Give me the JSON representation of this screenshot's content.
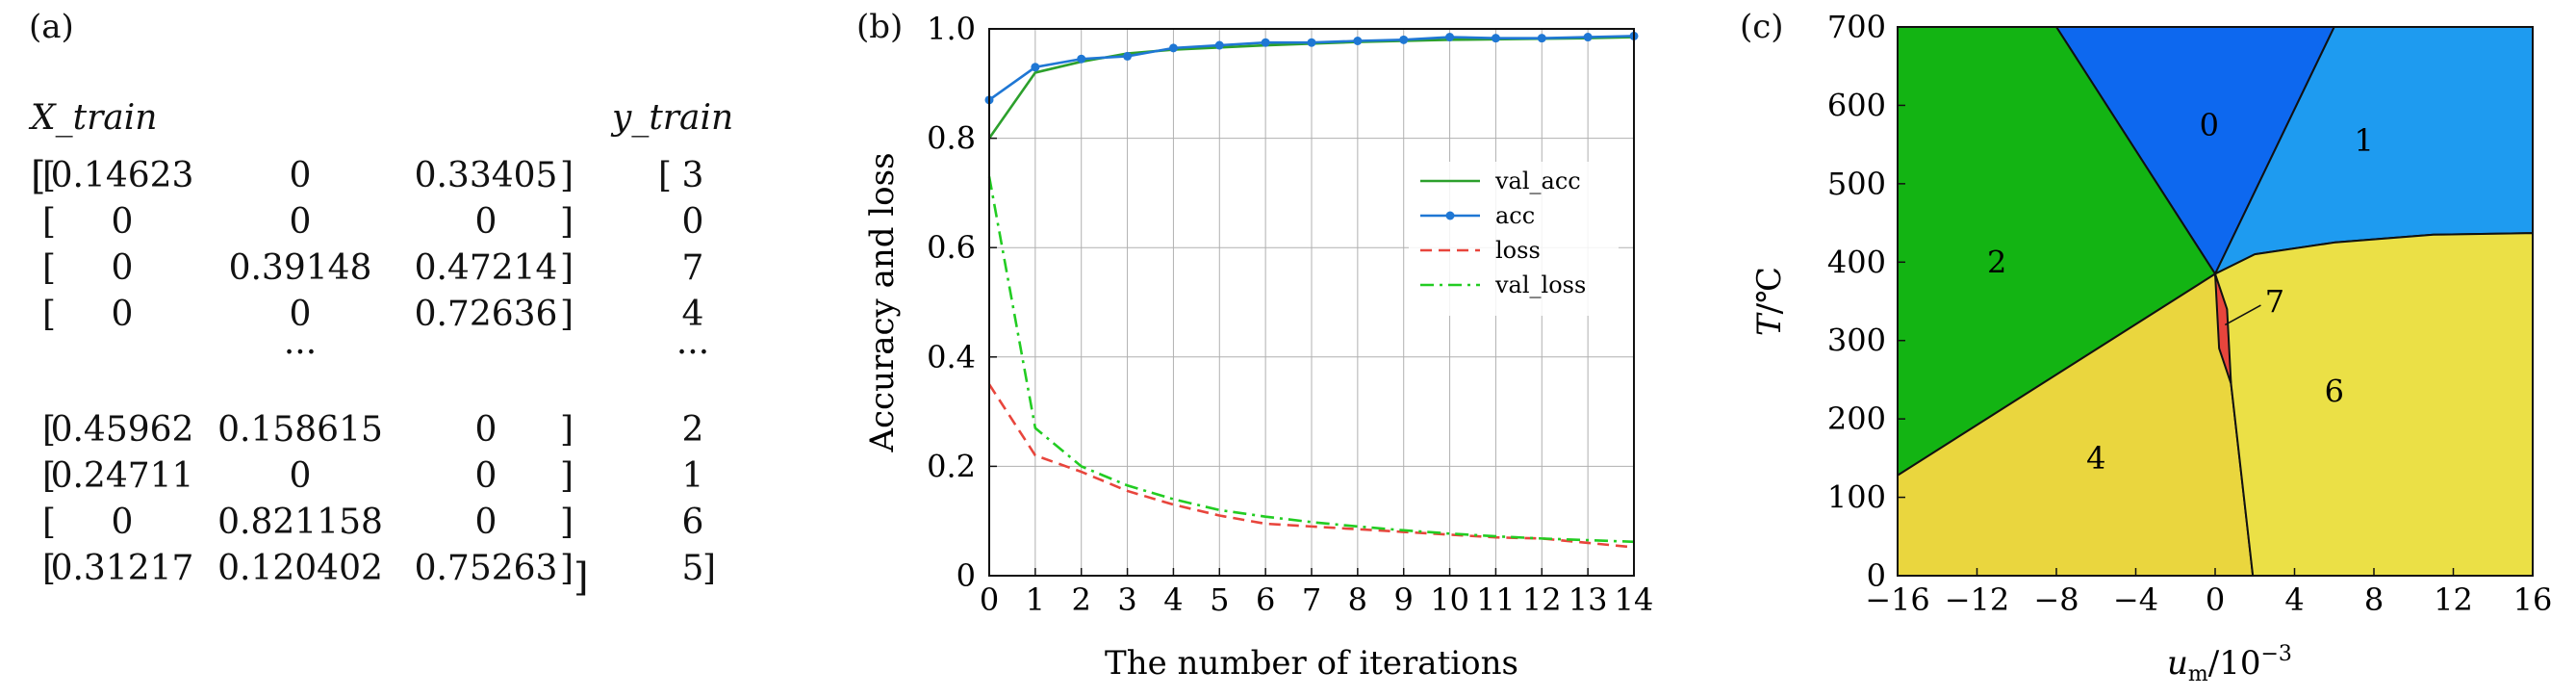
{
  "panel_a": {
    "label": "(a)",
    "x_header": "X_train",
    "y_header": "y_train",
    "open_outer": "[",
    "close_outer": "]",
    "rows": [
      {
        "c1": "0.14623",
        "c2": "0",
        "c3": "0.33405",
        "y": "3"
      },
      {
        "c1": "0",
        "c2": "0",
        "c3": "0",
        "y": "0"
      },
      {
        "c1": "0",
        "c2": "0.39148",
        "c3": "0.47214",
        "y": "7"
      },
      {
        "c1": "0",
        "c2": "0",
        "c3": "0.72636",
        "y": "4"
      },
      {
        "c1": "0.45962",
        "c2": "0.158615",
        "c3": "0",
        "y": "2"
      },
      {
        "c1": "0.24711",
        "c2": "0",
        "c3": "0",
        "y": "1"
      },
      {
        "c1": "0",
        "c2": "0.821158",
        "c3": "0",
        "y": "6"
      },
      {
        "c1": "0.31217",
        "c2": "0.120402",
        "c3": "0.75263",
        "y": "5"
      }
    ],
    "ellipsis": "···"
  },
  "panel_b": {
    "label": "(b)"
  },
  "panel_c": {
    "label": "(c)"
  },
  "chart_data": [
    {
      "type": "line",
      "title": "",
      "xlabel": "The number of iterations",
      "ylabel": "Accuracy and loss",
      "x": [
        0,
        1,
        2,
        3,
        4,
        5,
        6,
        7,
        8,
        9,
        10,
        11,
        12,
        13,
        14
      ],
      "xlim": [
        0,
        14
      ],
      "ylim": [
        0,
        1.0
      ],
      "yticks": [
        0,
        0.2,
        0.4,
        0.6,
        0.8,
        1.0
      ],
      "ytick_labels": [
        "0",
        "0.2",
        "0.4",
        "0.6",
        "0.8",
        "1.0"
      ],
      "xtick_labels": [
        "0",
        "1",
        "2",
        "3",
        "4",
        "5",
        "6",
        "7",
        "8",
        "9",
        "10",
        "11",
        "12",
        "13",
        "14"
      ],
      "grid": true,
      "legend_position": "center-right",
      "series": [
        {
          "name": "val_acc",
          "color": "#2ca02c",
          "style": "solid",
          "values": [
            0.8,
            0.92,
            0.94,
            0.955,
            0.962,
            0.966,
            0.97,
            0.973,
            0.976,
            0.978,
            0.98,
            0.981,
            0.982,
            0.983,
            0.985
          ]
        },
        {
          "name": "acc",
          "color": "#1f77d4",
          "style": "solid-marker",
          "values": [
            0.87,
            0.93,
            0.945,
            0.95,
            0.965,
            0.97,
            0.975,
            0.975,
            0.978,
            0.98,
            0.985,
            0.983,
            0.983,
            0.985,
            0.987
          ]
        },
        {
          "name": "loss",
          "color": "#e8453c",
          "style": "dashed",
          "values": [
            0.35,
            0.22,
            0.19,
            0.155,
            0.13,
            0.11,
            0.095,
            0.09,
            0.085,
            0.08,
            0.075,
            0.07,
            0.068,
            0.06,
            0.052
          ]
        },
        {
          "name": "val_loss",
          "color": "#22cc22",
          "style": "dashdot",
          "values": [
            0.73,
            0.27,
            0.2,
            0.165,
            0.14,
            0.12,
            0.108,
            0.098,
            0.09,
            0.083,
            0.077,
            0.072,
            0.068,
            0.065,
            0.062
          ]
        }
      ]
    },
    {
      "type": "phase-diagram",
      "title": "",
      "xlabel": "u_m/10^-3",
      "ylabel": "T/℃",
      "xlim": [
        -16,
        16
      ],
      "ylim": [
        0,
        700
      ],
      "xticks": [
        -16,
        -12,
        -8,
        -4,
        0,
        4,
        8,
        12,
        16
      ],
      "xtick_labels": [
        "−16",
        "−12",
        "−8",
        "−4",
        "0",
        "4",
        "8",
        "12",
        "16"
      ],
      "yticks": [
        0,
        100,
        200,
        300,
        400,
        500,
        600,
        700
      ],
      "ytick_labels": [
        "0",
        "100",
        "200",
        "300",
        "400",
        "500",
        "600",
        "700"
      ],
      "x_axis_label": {
        "main": "u",
        "sub": "m",
        "tail": "/10",
        "sup": "−3"
      },
      "y_axis_label": {
        "main": "T",
        "tail": "/℃"
      },
      "regions": [
        {
          "label": "0",
          "color": "#0d68ef",
          "label_at": [
            -0.3,
            575
          ],
          "polygon": [
            [
              -8,
              700
            ],
            [
              6,
              700
            ],
            [
              0,
              385
            ]
          ]
        },
        {
          "label": "1",
          "color": "#1e9bf0",
          "label_at": [
            7.5,
            555
          ],
          "polygon": [
            [
              6,
              700
            ],
            [
              16,
              700
            ],
            [
              16,
              437
            ],
            [
              11,
              435
            ],
            [
              6,
              425
            ],
            [
              2,
              410
            ],
            [
              0,
              385
            ]
          ]
        },
        {
          "label": "2",
          "color": "#13b413",
          "label_at": [
            -11,
            400
          ],
          "polygon": [
            [
              -16,
              700
            ],
            [
              -8,
              700
            ],
            [
              0,
              385
            ],
            [
              -16,
              128
            ]
          ]
        },
        {
          "label": "4",
          "color": "#ead63e",
          "label_at": [
            -6,
            150
          ],
          "polygon": [
            [
              -16,
              128
            ],
            [
              0,
              385
            ],
            [
              0.8,
              245
            ],
            [
              1.9,
              0
            ],
            [
              -16,
              0
            ]
          ]
        },
        {
          "label": "6",
          "color": "#ebe046",
          "label_at": [
            6,
            235
          ],
          "polygon": [
            [
              0,
              385
            ],
            [
              2,
              410
            ],
            [
              6,
              425
            ],
            [
              11,
              435
            ],
            [
              16,
              437
            ],
            [
              16,
              0
            ],
            [
              1.9,
              0
            ],
            [
              0.8,
              245
            ]
          ]
        },
        {
          "label": "7",
          "color": "#e8453c",
          "label_at": [
            3,
            350
          ],
          "polygon": [
            [
              0,
              385
            ],
            [
              0.6,
              340
            ],
            [
              0.8,
              245
            ],
            [
              0.2,
              290
            ],
            [
              0,
              385
            ]
          ]
        }
      ]
    }
  ]
}
